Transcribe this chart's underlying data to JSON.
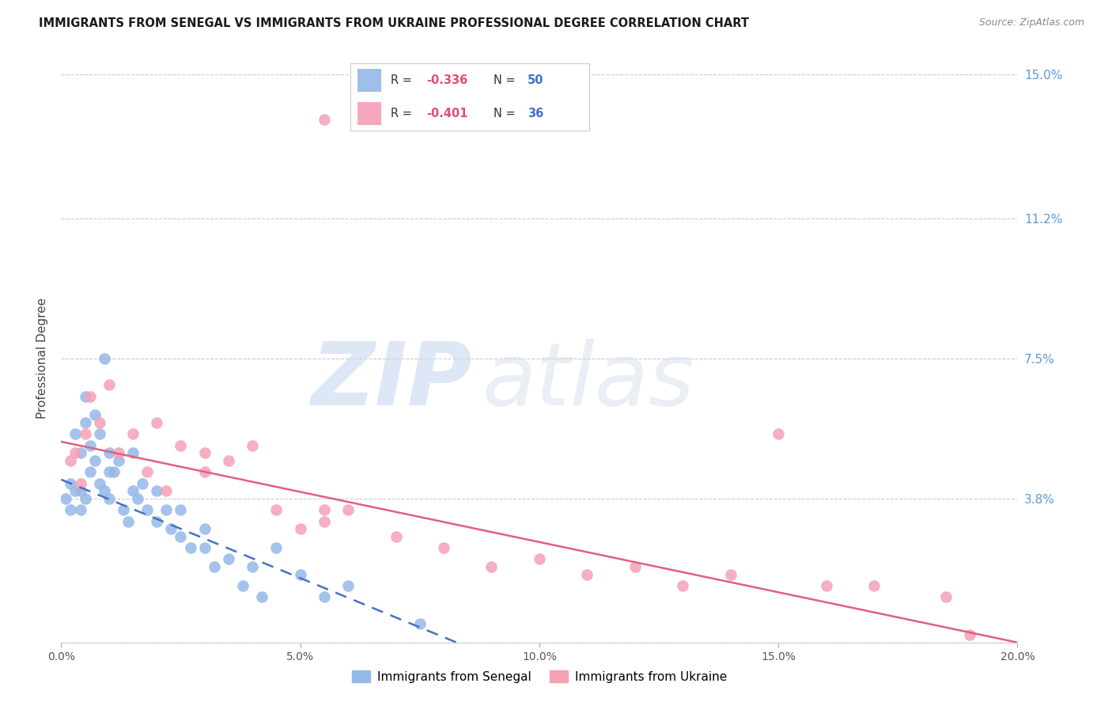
{
  "title": "IMMIGRANTS FROM SENEGAL VS IMMIGRANTS FROM UKRAINE PROFESSIONAL DEGREE CORRELATION CHART",
  "source": "Source: ZipAtlas.com",
  "ylabel": "Professional Degree",
  "xlim": [
    0.0,
    20.0
  ],
  "ylim": [
    0.0,
    15.0
  ],
  "x_ticks": [
    0.0,
    5.0,
    10.0,
    15.0,
    20.0
  ],
  "y_ticks": [
    0.0,
    3.8,
    7.5,
    11.2,
    15.0
  ],
  "legend_r1": "-0.336",
  "legend_n1": "50",
  "legend_r2": "-0.401",
  "legend_n2": "36",
  "senegal_color": "#94b8e8",
  "ukraine_color": "#f5a0b5",
  "senegal_line_color": "#4472c4",
  "ukraine_line_color": "#e06080",
  "right_tick_color": "#5b9bd5",
  "title_color": "#1a1a1a",
  "source_color": "#888888",
  "sen_x": [
    0.1,
    0.2,
    0.2,
    0.3,
    0.3,
    0.4,
    0.4,
    0.4,
    0.5,
    0.5,
    0.5,
    0.6,
    0.6,
    0.7,
    0.7,
    0.8,
    0.8,
    0.9,
    0.9,
    1.0,
    1.0,
    1.0,
    1.1,
    1.2,
    1.3,
    1.4,
    1.5,
    1.5,
    1.6,
    1.7,
    1.8,
    2.0,
    2.0,
    2.2,
    2.3,
    2.5,
    2.5,
    2.7,
    3.0,
    3.0,
    3.2,
    3.5,
    3.8,
    4.0,
    4.2,
    4.5,
    5.0,
    5.5,
    6.0,
    7.5
  ],
  "sen_y": [
    3.8,
    3.5,
    4.2,
    4.0,
    5.5,
    3.5,
    4.0,
    5.0,
    3.8,
    5.8,
    6.5,
    4.5,
    5.2,
    4.8,
    6.0,
    4.2,
    5.5,
    4.0,
    7.5,
    3.8,
    4.5,
    5.0,
    4.5,
    4.8,
    3.5,
    3.2,
    4.0,
    5.0,
    3.8,
    4.2,
    3.5,
    3.2,
    4.0,
    3.5,
    3.0,
    2.8,
    3.5,
    2.5,
    2.5,
    3.0,
    2.0,
    2.2,
    1.5,
    2.0,
    1.2,
    2.5,
    1.8,
    1.2,
    1.5,
    0.5
  ],
  "ukr_x": [
    0.2,
    0.3,
    0.4,
    0.5,
    0.6,
    0.8,
    1.0,
    1.2,
    1.5,
    1.8,
    2.0,
    2.2,
    2.5,
    3.0,
    3.0,
    3.5,
    4.0,
    4.5,
    5.0,
    5.5,
    5.5,
    6.0,
    7.0,
    8.0,
    9.0,
    10.0,
    11.0,
    12.0,
    13.0,
    14.0,
    15.0,
    16.0,
    17.0,
    18.5,
    19.0,
    5.5
  ],
  "ukr_y": [
    4.8,
    5.0,
    4.2,
    5.5,
    6.5,
    5.8,
    6.8,
    5.0,
    5.5,
    4.5,
    5.8,
    4.0,
    5.2,
    4.5,
    5.0,
    4.8,
    5.2,
    3.5,
    3.0,
    3.5,
    3.2,
    3.5,
    2.8,
    2.5,
    2.0,
    2.2,
    1.8,
    2.0,
    1.5,
    1.8,
    5.5,
    1.5,
    1.5,
    1.2,
    0.2,
    13.8
  ]
}
